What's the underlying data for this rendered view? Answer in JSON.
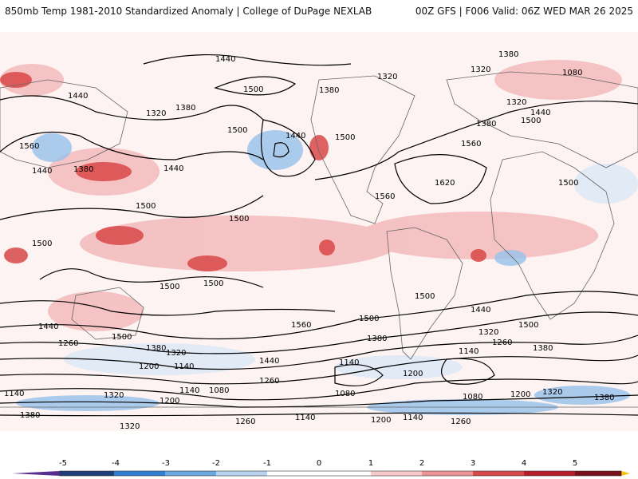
{
  "header": {
    "title": "850mb Temp 1981-2010 Standardized Anomaly | College of DuPage NEXLAB",
    "run_info": "00Z GFS | F006 Valid: 06Z WED MAR 26 2025"
  },
  "colorbar": {
    "ticks": [
      "-5",
      "-4",
      "-3",
      "-2",
      "-1",
      "0",
      "1",
      "2",
      "3",
      "4",
      "5"
    ],
    "colors": [
      "#5a2d91",
      "#1f3f7a",
      "#2e7fd1",
      "#6aa8e0",
      "#b7d3ef",
      "#ffffff",
      "#f7c9c9",
      "#ee9494",
      "#d94848",
      "#b71c2b",
      "#7a0f1c",
      "#f5c400"
    ]
  },
  "contour_labels": [
    "1440",
    "1500",
    "1380",
    "1320",
    "1560",
    "1620",
    "1260",
    "1200",
    "1140",
    "1080"
  ]
}
